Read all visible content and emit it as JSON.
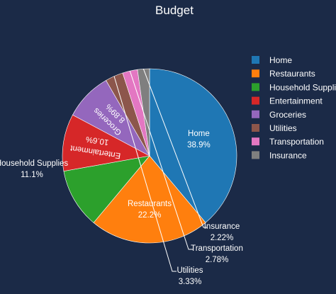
{
  "chart_data": {
    "type": "pie",
    "title": "Budget",
    "categories": [
      "Home",
      "Restaurants",
      "Household Supplies",
      "Entertainment",
      "Groceries",
      "Utilities",
      "Transportation",
      "Insurance"
    ],
    "values": [
      38.9,
      22.2,
      11.1,
      10.6,
      8.89,
      3.33,
      2.78,
      2.22
    ],
    "percent_labels": [
      "38.9%",
      "22.2%",
      "11.1%",
      "10.6%",
      "8.89%",
      "3.33%",
      "2.78%",
      "2.22%"
    ],
    "colors": [
      "#1f77b4",
      "#ff7f0e",
      "#2ca02c",
      "#d62728",
      "#9467bd",
      "#8c564b",
      "#e377c2",
      "#7f7f7f"
    ],
    "start_angle_deg": 90,
    "direction": "clockwise",
    "legend_placement": "top-right"
  }
}
